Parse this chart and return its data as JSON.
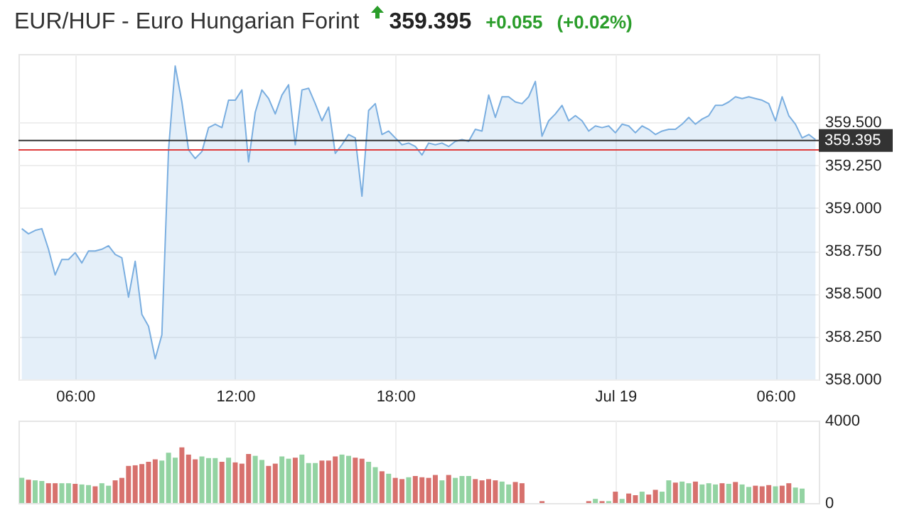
{
  "chart_data": [
    {
      "type": "area",
      "title": "EUR/HUF - Euro Hungarian Forint",
      "annotations": [
        "359.395",
        "+0.055",
        "(+0.02%)"
      ],
      "categories": [
        null,
        null,
        null,
        null,
        null,
        null,
        null,
        null,
        "06:00",
        null,
        null,
        null,
        null,
        null,
        null,
        null,
        null,
        null,
        null,
        null,
        null,
        null,
        null,
        null,
        null,
        null,
        null,
        null,
        null,
        null,
        null,
        null,
        "12:00",
        null,
        null,
        null,
        null,
        null,
        null,
        null,
        null,
        null,
        null,
        null,
        null,
        null,
        null,
        null,
        null,
        null,
        null,
        null,
        null,
        null,
        null,
        null,
        "18:00",
        null,
        null,
        null,
        null,
        null,
        null,
        null,
        null,
        null,
        null,
        null,
        null,
        null,
        null,
        null,
        null,
        null,
        null,
        null,
        null,
        null,
        null,
        null,
        null,
        null,
        null,
        null,
        null,
        null,
        null,
        null,
        null,
        "Jul 19",
        null,
        null,
        null,
        null,
        null,
        null,
        null,
        null,
        null,
        null,
        null,
        null,
        null,
        null,
        null,
        null,
        null,
        null,
        null,
        null,
        null,
        null,
        null,
        "06:00",
        null,
        null,
        null,
        null,
        null,
        null
      ],
      "series": [
        {
          "color": "#7aaee0",
          "values": [
            358.88,
            358.85,
            358.87,
            358.88,
            358.76,
            358.61,
            358.7,
            358.7,
            358.74,
            358.68,
            358.75,
            358.75,
            358.76,
            358.78,
            358.73,
            358.71,
            358.48,
            358.69,
            358.38,
            358.31,
            358.12,
            358.26,
            359.34,
            359.83,
            359.62,
            359.34,
            359.29,
            359.33,
            359.47,
            359.49,
            359.47,
            359.63,
            359.63,
            359.69,
            359.27,
            359.56,
            359.69,
            359.64,
            359.55,
            359.66,
            359.72,
            359.37,
            359.69,
            359.7,
            359.61,
            359.51,
            359.59,
            359.32,
            359.37,
            359.43,
            359.41,
            359.07,
            359.57,
            359.61,
            359.43,
            359.45,
            359.41,
            359.37,
            359.38,
            359.36,
            359.31,
            359.38,
            359.37,
            359.38,
            359.36,
            359.39,
            359.4,
            359.39,
            359.46,
            359.45,
            359.66,
            359.53,
            359.65,
            359.65,
            359.62,
            359.61,
            359.65,
            359.74,
            359.42,
            359.51,
            359.55,
            359.6,
            359.51,
            359.54,
            359.51,
            359.45,
            359.48,
            359.47,
            359.48,
            359.44,
            359.49,
            359.48,
            359.44,
            359.48,
            359.46,
            359.43,
            359.45,
            359.46,
            359.46,
            359.49,
            359.53,
            359.49,
            359.52,
            359.54,
            359.6,
            359.6,
            359.62,
            359.65,
            359.64,
            359.65,
            359.64,
            359.63,
            359.61,
            359.51,
            359.65,
            359.54,
            359.49,
            359.41,
            359.43,
            359.4
          ]
        }
      ],
      "ylim": [
        358,
        359.9
      ],
      "yticks": [
        {
          "value": 358,
          "label": "358.000"
        },
        {
          "value": 358.25,
          "label": "358.250"
        },
        {
          "value": 358.5,
          "label": "358.500"
        },
        {
          "value": 358.75,
          "label": "358.750"
        },
        {
          "value": 359,
          "label": "359.000"
        },
        {
          "value": 359.25,
          "label": "359.250"
        },
        {
          "value": 359.5,
          "label": "359.500"
        }
      ],
      "ref_lines": [
        {
          "axis": "y",
          "value": 359.395,
          "label": "359.395",
          "color": "#333333"
        },
        {
          "axis": "y",
          "value": 359.34,
          "color": "#e03c3c"
        }
      ],
      "grid": true
    },
    {
      "type": "bar",
      "categories": [
        null,
        null,
        null,
        null,
        null,
        null,
        null,
        null,
        null,
        null,
        null,
        null,
        null,
        null,
        null,
        null,
        null,
        null,
        null,
        null,
        null,
        null,
        null,
        null,
        null,
        null,
        null,
        null,
        null,
        null,
        null,
        null,
        null,
        null,
        null,
        null,
        null,
        null,
        null,
        null,
        null,
        null,
        null,
        null,
        null,
        null,
        null,
        null,
        null,
        null,
        null,
        null,
        null,
        null,
        null,
        null,
        null,
        null,
        null,
        null,
        null,
        null,
        null,
        null,
        null,
        null,
        null,
        null,
        null,
        null,
        null,
        null,
        null,
        null,
        null,
        null,
        null,
        null,
        null,
        null,
        null,
        null,
        null,
        null,
        null,
        null,
        null,
        null,
        null,
        null,
        null,
        null,
        null,
        null,
        null,
        null,
        null,
        null,
        null,
        null,
        null,
        null,
        null,
        null,
        null,
        null,
        null,
        null,
        null,
        null,
        null,
        null,
        null,
        null,
        null,
        null,
        null,
        null,
        null,
        null
      ],
      "values": [
        1220,
        1130,
        1100,
        1070,
        960,
        960,
        960,
        960,
        930,
        900,
        870,
        810,
        960,
        840,
        1100,
        1220,
        1800,
        1830,
        1890,
        2000,
        2120,
        2060,
        2440,
        2200,
        2700,
        2350,
        2120,
        2260,
        2180,
        2180,
        2000,
        2200,
        1970,
        1910,
        2380,
        2290,
        2090,
        1800,
        1910,
        2260,
        2150,
        2200,
        2350,
        1940,
        1940,
        2060,
        2060,
        2260,
        2350,
        2290,
        2200,
        2150,
        2000,
        1740,
        1540,
        1420,
        1220,
        1160,
        1250,
        1310,
        1250,
        1220,
        1360,
        1100,
        1360,
        1220,
        1310,
        1310,
        1160,
        1100,
        1160,
        1100,
        1040,
        900,
        1020,
        960,
        null,
        null,
        90,
        null,
        null,
        null,
        null,
        null,
        null,
        90,
        200,
        90,
        90,
        550,
        200,
        460,
        380,
        550,
        410,
        640,
        550,
        1100,
        990,
        1040,
        960,
        1040,
        900,
        960,
        900,
        960,
        930,
        1020,
        900,
        780,
        840,
        810,
        870,
        810,
        840,
        960,
        750,
        700,
        null,
        null
      ],
      "colors": [
        "#93d3a2",
        "#d7716d",
        "#93d3a2",
        "#93d3a2",
        "#d7716d",
        "#d7716d",
        "#93d3a2",
        "#93d3a2",
        "#d7716d",
        "#93d3a2",
        "#93d3a2",
        "#d7716d",
        "#93d3a2",
        "#93d3a2",
        "#d7716d",
        "#d7716d",
        "#d7716d",
        "#d7716d",
        "#d7716d",
        "#d7716d",
        "#d7716d",
        "#93d3a2",
        "#93d3a2",
        "#93d3a2",
        "#d7716d",
        "#d7716d",
        "#d7716d",
        "#93d3a2",
        "#93d3a2",
        "#93d3a2",
        "#d7716d",
        "#93d3a2",
        "#d7716d",
        "#d7716d",
        "#d7716d",
        "#93d3a2",
        "#93d3a2",
        "#d7716d",
        "#d7716d",
        "#93d3a2",
        "#93d3a2",
        "#d7716d",
        "#93d3a2",
        "#93d3a2",
        "#93d3a2",
        "#d7716d",
        "#d7716d",
        "#d7716d",
        "#93d3a2",
        "#93d3a2",
        "#d7716d",
        "#d7716d",
        "#93d3a2",
        "#93d3a2",
        "#d7716d",
        "#93d3a2",
        "#d7716d",
        "#d7716d",
        "#93d3a2",
        "#d7716d",
        "#d7716d",
        "#d7716d",
        "#d7716d",
        "#93d3a2",
        "#d7716d",
        "#93d3a2",
        "#93d3a2",
        "#93d3a2",
        "#d7716d",
        "#d7716d",
        "#d7716d",
        "#d7716d",
        "#93d3a2",
        "#93d3a2",
        "#d7716d",
        "#d7716d",
        null,
        null,
        "#d7716d",
        null,
        null,
        null,
        null,
        null,
        null,
        "#d7716d",
        "#93d3a2",
        "#d7716d",
        "#93d3a2",
        "#d7716d",
        "#93d3a2",
        "#d7716d",
        "#d7716d",
        "#93d3a2",
        "#d7716d",
        "#d7716d",
        "#93d3a2",
        "#93d3a2",
        "#d7716d",
        "#93d3a2",
        "#93d3a2",
        "#d7716d",
        "#93d3a2",
        "#93d3a2",
        "#93d3a2",
        "#d7716d",
        "#93d3a2",
        "#d7716d",
        "#93d3a2",
        "#93d3a2",
        "#d7716d",
        "#d7716d",
        "#d7716d",
        "#93d3a2",
        "#d7716d",
        "#d7716d",
        "#93d3a2",
        "#93d3a2",
        null,
        null
      ],
      "ylim": [
        0,
        4000
      ],
      "yticks": [
        0,
        4000
      ],
      "tick_labels": "y",
      "grid": "x"
    }
  ]
}
